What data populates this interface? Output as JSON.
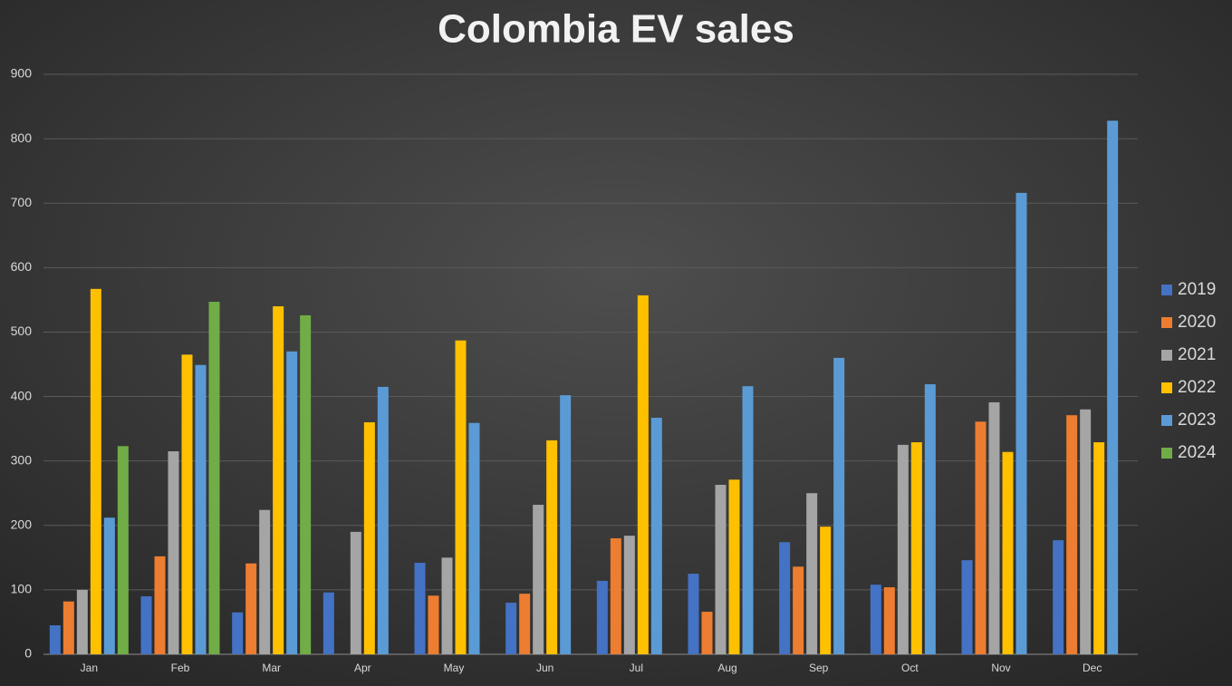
{
  "chart_data": {
    "type": "bar",
    "title": "Colombia EV sales",
    "categories": [
      "Jan",
      "Feb",
      "Mar",
      "Apr",
      "May",
      "Jun",
      "Jul",
      "Aug",
      "Sep",
      "Oct",
      "Nov",
      "Dec"
    ],
    "series": [
      {
        "name": "2019",
        "color": "#4472c4",
        "values": [
          45,
          90,
          65,
          96,
          142,
          80,
          114,
          125,
          174,
          108,
          146,
          177
        ]
      },
      {
        "name": "2020",
        "color": "#ed7d31",
        "values": [
          82,
          152,
          141,
          null,
          91,
          94,
          180,
          66,
          136,
          104,
          361,
          371
        ]
      },
      {
        "name": "2021",
        "color": "#a5a5a5",
        "values": [
          100,
          315,
          224,
          190,
          150,
          232,
          184,
          263,
          250,
          325,
          391,
          380
        ]
      },
      {
        "name": "2022",
        "color": "#ffc000",
        "values": [
          567,
          465,
          540,
          360,
          487,
          332,
          557,
          271,
          198,
          329,
          314,
          329
        ]
      },
      {
        "name": "2023",
        "color": "#5b9bd5",
        "values": [
          212,
          449,
          470,
          415,
          359,
          402,
          367,
          416,
          460,
          419,
          716,
          828
        ]
      },
      {
        "name": "2024",
        "color": "#70ad47",
        "values": [
          323,
          547,
          526,
          null,
          null,
          null,
          null,
          null,
          null,
          null,
          null,
          null
        ]
      }
    ],
    "ylim": [
      0,
      900
    ],
    "yticks": [
      0,
      100,
      200,
      300,
      400,
      500,
      600,
      700,
      800,
      900
    ],
    "grid": true,
    "legend": "right"
  }
}
